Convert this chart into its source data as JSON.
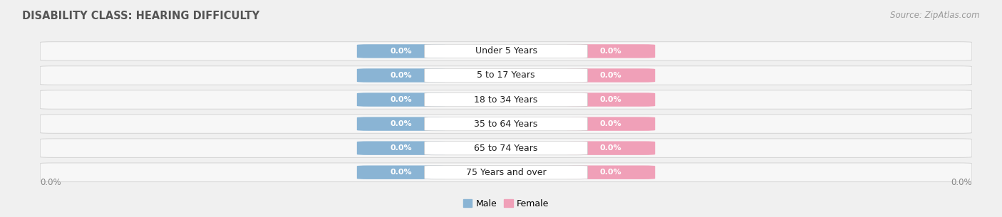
{
  "title": "DISABILITY CLASS: HEARING DIFFICULTY",
  "source_text": "Source: ZipAtlas.com",
  "categories": [
    "Under 5 Years",
    "5 to 17 Years",
    "18 to 34 Years",
    "35 to 64 Years",
    "65 to 74 Years",
    "75 Years and over"
  ],
  "male_values": [
    0.0,
    0.0,
    0.0,
    0.0,
    0.0,
    0.0
  ],
  "female_values": [
    0.0,
    0.0,
    0.0,
    0.0,
    0.0,
    0.0
  ],
  "male_color": "#8ab4d4",
  "female_color": "#f0a0b8",
  "male_label": "Male",
  "female_label": "Female",
  "title_fontsize": 10.5,
  "source_fontsize": 8.5,
  "axis_label_fontsize": 8.5,
  "bar_label_fontsize": 8,
  "category_fontsize": 9,
  "left_axis_label": "0.0%",
  "right_axis_label": "0.0%",
  "background_color": "#f0f0f0",
  "row_bg_color": "#f7f7f7",
  "row_border_color": "#d8d8d8"
}
